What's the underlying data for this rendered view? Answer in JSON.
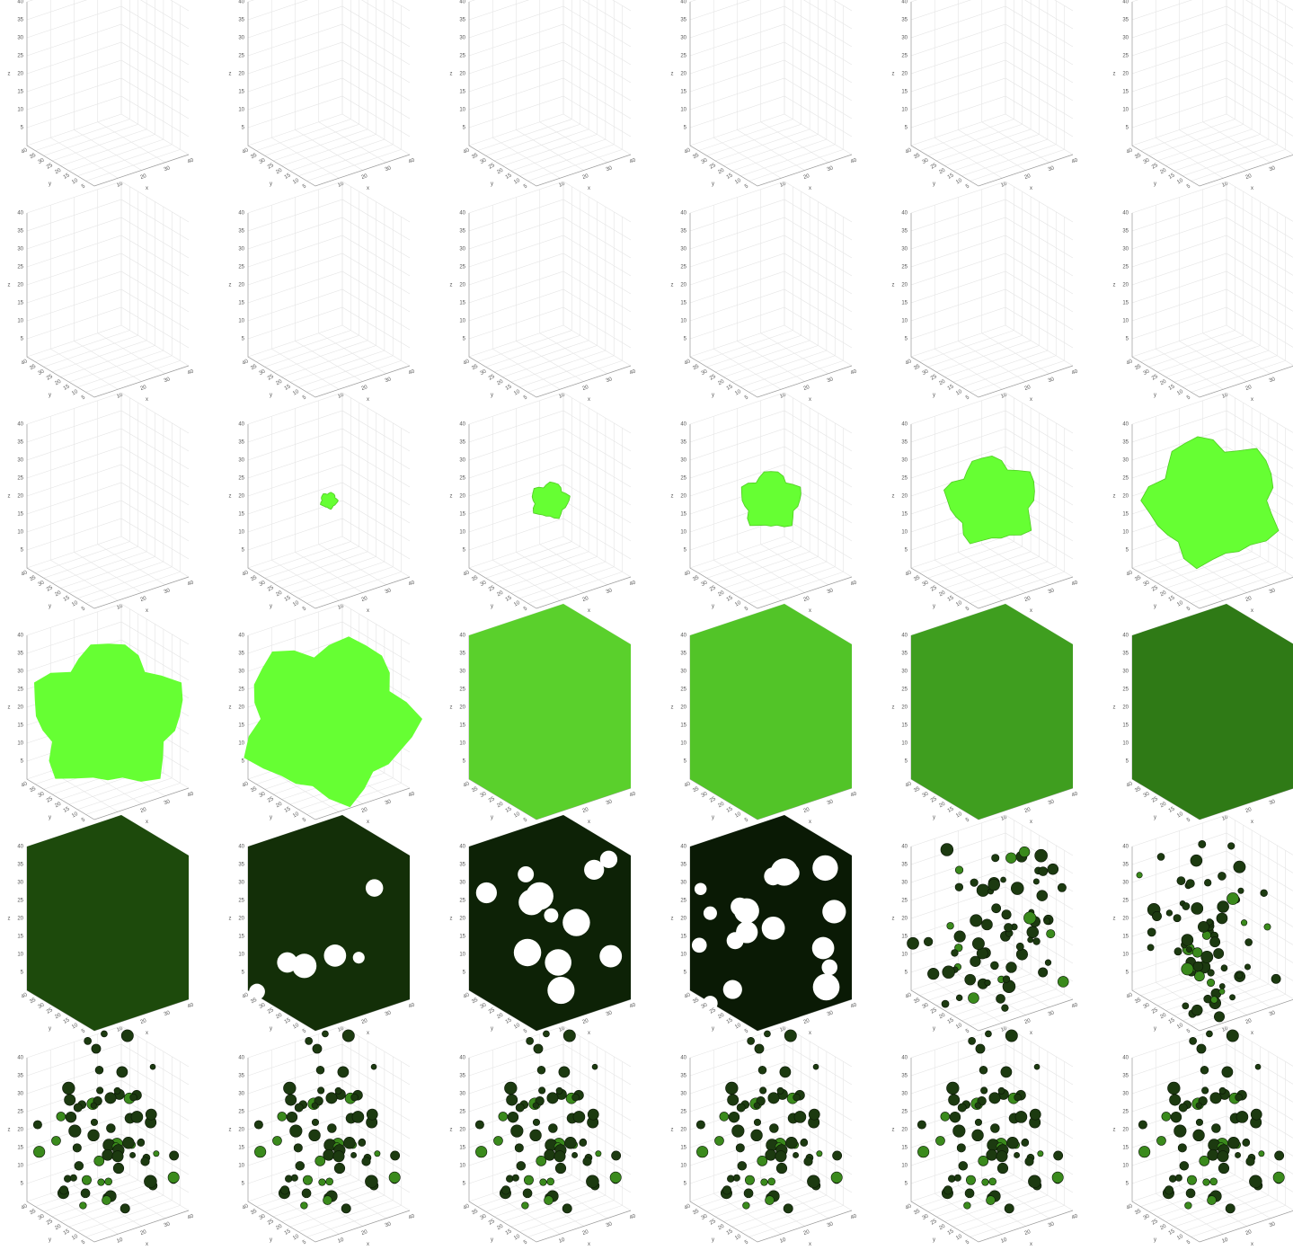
{
  "chart_data": {
    "type": "scatter3d",
    "xlabel": "x",
    "ylabel": "y",
    "zlabel": "z",
    "xlim": [
      0,
      40
    ],
    "ylim": [
      0,
      40
    ],
    "zlim": [
      0,
      40
    ],
    "xticks": [
      10,
      20,
      30,
      40
    ],
    "yticks": [
      5,
      10,
      15,
      20,
      25,
      30,
      35,
      40
    ],
    "zticks": [
      5,
      10,
      15,
      20,
      25,
      30,
      35,
      40
    ],
    "grid": true,
    "color": "#66ff33"
  }
}
